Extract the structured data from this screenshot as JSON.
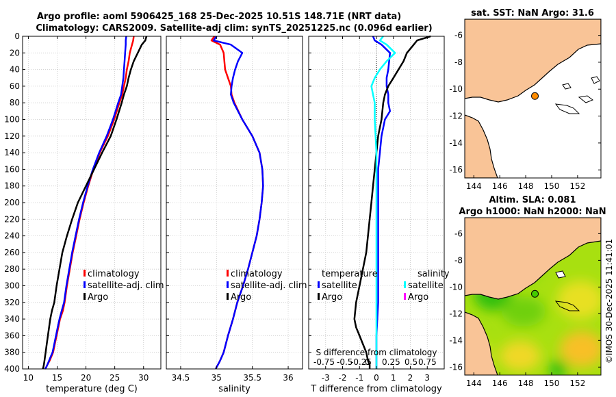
{
  "chart_data": {
    "title_line1": "Argo profile: aoml 5906425_168 25-Dec-2025 10.51S 148.71E (NRT data)",
    "title_line2": "Climatology: CARS2009. Satellite-adj clim: synTS_20251225.nc (0.096d earlier)",
    "watermark": "©IMOS 30-Dec-2025 11:41:01",
    "colors": {
      "climatology": "#ff0000",
      "satellite": "#0000ff",
      "argo": "#000000",
      "sal_sat": "#00ffff",
      "sal_argo": "#ff00ff",
      "land": "#f9c497"
    },
    "depth_ticks": [
      0,
      20,
      40,
      60,
      80,
      100,
      120,
      140,
      160,
      180,
      200,
      220,
      240,
      260,
      280,
      300,
      320,
      340,
      360,
      380,
      400
    ],
    "panels": [
      {
        "id": "temperature",
        "type": "line",
        "xlabel": "temperature (deg C)",
        "xlim": [
          9,
          33
        ],
        "xticks": [
          10,
          15,
          20,
          25,
          30
        ],
        "ylim": [
          0,
          400
        ],
        "legend": [
          "climatology",
          "satellite-adj. clim",
          "Argo"
        ],
        "series": [
          {
            "name": "climatology",
            "color": "#ff0000",
            "width": 2.5,
            "x": [
              28.3,
              28.2,
              28.0,
              27.6,
              27.4,
              27.1,
              26.9,
              26.6,
              26.3,
              25.8,
              24.9,
              23.8,
              22.4,
              21.3,
              20.4,
              19.6,
              18.9,
              18.3,
              17.7,
              17.2,
              16.7,
              16.3,
              16.0,
              15.5,
              15.2,
              14.9,
              14.6,
              14.3,
              14.0,
              13.7,
              13.3,
              13.1,
              12.9
            ],
            "y": [
              0,
              5,
              10,
              20,
              30,
              40,
              50,
              60,
              70,
              80,
              100,
              120,
              140,
              160,
              180,
              200,
              220,
              240,
              260,
              280,
              300,
              320,
              330,
              340,
              350,
              360,
              370,
              380,
              385,
              390,
              395,
              398,
              400
            ]
          },
          {
            "name": "satellite-adj. clim",
            "color": "#0000ff",
            "width": 2.5,
            "x": [
              27.0,
              26.9,
              26.9,
              26.8,
              26.7,
              26.6,
              26.5,
              26.3,
              26.1,
              25.6,
              24.7,
              23.6,
              22.3,
              21.2,
              20.3,
              19.5,
              18.8,
              18.2,
              17.6,
              17.1,
              16.6,
              16.2,
              15.8,
              15.4,
              15.1,
              14.8,
              14.5,
              14.2,
              13.9,
              13.6,
              13.3,
              13.1,
              12.9
            ],
            "y": [
              0,
              5,
              10,
              20,
              30,
              40,
              50,
              60,
              70,
              80,
              100,
              120,
              140,
              160,
              180,
              200,
              220,
              240,
              260,
              280,
              300,
              320,
              330,
              340,
              350,
              360,
              370,
              380,
              385,
              390,
              395,
              398,
              400
            ]
          },
          {
            "name": "Argo",
            "color": "#000000",
            "width": 2.5,
            "x": [
              30.5,
              30.3,
              29.7,
              29.0,
              28.3,
              27.8,
              27.4,
              27.1,
              26.6,
              26.2,
              25.3,
              24.3,
              22.8,
              21.4,
              20.0,
              18.6,
              17.6,
              16.7,
              15.9,
              15.4,
              14.9,
              14.5,
              14.1,
              13.8,
              13.6,
              13.4,
              13.2,
              13.0,
              12.9,
              12.8,
              12.7,
              12.6,
              12.5
            ],
            "y": [
              0,
              5,
              10,
              20,
              30,
              40,
              50,
              60,
              70,
              80,
              100,
              120,
              140,
              160,
              180,
              200,
              220,
              240,
              260,
              280,
              300,
              320,
              330,
              340,
              350,
              360,
              370,
              380,
              385,
              390,
              395,
              398,
              400
            ]
          }
        ]
      },
      {
        "id": "salinity",
        "type": "line",
        "xlabel": "salinity",
        "xlim": [
          34.3,
          36.2
        ],
        "xticks": [
          34.5,
          35,
          35.5,
          36
        ],
        "xtick_labels": [
          "34.5",
          "35",
          "35.5",
          "36"
        ],
        "ylim": [
          0,
          400
        ],
        "legend": [
          "climatology",
          "satellite-adj. clim",
          "Argo"
        ],
        "series": [
          {
            "name": "climatology",
            "color": "#ff0000",
            "width": 2.5,
            "x": [
              34.97,
              34.93,
              35.05,
              35.1,
              35.11,
              35.12,
              35.16,
              35.2,
              35.21,
              35.25,
              35.36,
              35.5,
              35.6,
              35.64,
              35.65,
              35.63,
              35.6,
              35.56,
              35.5,
              35.44,
              35.37,
              35.29,
              35.23,
              35.16,
              35.1,
              35.05,
              35.02,
              35.0,
              34.99
            ],
            "y": [
              0,
              5,
              10,
              20,
              30,
              40,
              50,
              60,
              70,
              80,
              100,
              120,
              140,
              160,
              180,
              200,
              220,
              240,
              260,
              280,
              300,
              320,
              340,
              360,
              380,
              390,
              395,
              398,
              400
            ]
          },
          {
            "name": "satellite-adj. clim",
            "color": "#0000ff",
            "width": 2.5,
            "x": [
              35.0,
              34.96,
              35.2,
              35.36,
              35.3,
              35.26,
              35.23,
              35.21,
              35.2,
              35.24,
              35.36,
              35.5,
              35.6,
              35.64,
              35.65,
              35.63,
              35.6,
              35.56,
              35.5,
              35.44,
              35.37,
              35.29,
              35.23,
              35.16,
              35.1,
              35.05,
              35.02,
              35.0,
              34.99
            ],
            "y": [
              0,
              5,
              10,
              20,
              30,
              40,
              50,
              60,
              70,
              80,
              100,
              120,
              140,
              160,
              180,
              200,
              220,
              240,
              260,
              280,
              300,
              320,
              340,
              360,
              380,
              390,
              395,
              398,
              400
            ]
          }
        ]
      },
      {
        "id": "difference",
        "type": "line",
        "xlabel": "T difference from climatology",
        "xlim": [
          -4,
          4
        ],
        "xticks": [
          -3,
          -2,
          -1,
          0,
          1,
          2,
          3
        ],
        "ylim": [
          0,
          400
        ],
        "legend_temperature_title": "temperature",
        "legend_salinity_title": "salinity",
        "legend_temperature": [
          "satellite",
          "Argo"
        ],
        "legend_salinity": [
          "satellite",
          "Argo"
        ],
        "s_axis_label": "S difference from climatology",
        "s_axis_ticks": [
          "-0.75",
          "-0.5",
          "-0.25",
          "0",
          "0.25",
          "0.5",
          "0.75"
        ],
        "series": [
          {
            "name": "satellite",
            "color": "#0000ff",
            "width": 2.5,
            "x": [
              -0.2,
              -0.1,
              0.3,
              0.8,
              0.7,
              0.6,
              0.6,
              0.7,
              0.7,
              0.8,
              0.5,
              0.3,
              0.2,
              0.1,
              0.1,
              0.1,
              0.1,
              0.1,
              0.0,
              0.0,
              0.0
            ],
            "y": [
              0,
              5,
              10,
              20,
              40,
              50,
              60,
              70,
              80,
              90,
              100,
              120,
              140,
              160,
              200,
              240,
              280,
              320,
              360,
              380,
              400
            ]
          },
          {
            "name": "Argo",
            "color": "#000000",
            "width": 2.5,
            "x": [
              3.2,
              2.4,
              2.2,
              1.8,
              1.6,
              1.3,
              1.0,
              0.7,
              0.5,
              0.4,
              0.3,
              0.1,
              0.0,
              -0.1,
              -0.2,
              -0.3,
              -0.4,
              -0.5,
              -0.6,
              -0.8,
              -1.0,
              -1.2,
              -1.3,
              -1.2,
              -1.0,
              -0.8,
              -0.6,
              -0.5,
              -0.4,
              -0.4
            ],
            "y": [
              0,
              5,
              10,
              20,
              30,
              40,
              50,
              60,
              70,
              80,
              100,
              120,
              140,
              160,
              180,
              200,
              220,
              240,
              260,
              280,
              300,
              320,
              340,
              350,
              360,
              370,
              380,
              390,
              395,
              400
            ]
          },
          {
            "name": "salinity satellite",
            "color": "#00ffff",
            "width": 2.5,
            "x": [
              0.4,
              0.2,
              0.6,
              1.1,
              0.6,
              0.2,
              -0.1,
              -0.3,
              -0.2,
              -0.1,
              -0.1,
              0.0,
              0.0,
              0.0,
              0.0,
              0.0,
              0.0,
              0.0,
              0.0
            ],
            "y": [
              0,
              5,
              10,
              20,
              30,
              40,
              50,
              60,
              70,
              80,
              100,
              140,
              180,
              220,
              260,
              300,
              340,
              380,
              400
            ]
          }
        ]
      }
    ],
    "maps": [
      {
        "id": "sst-map",
        "title": "sat. SST: NaN Argo: 31.6",
        "xticks": [
          "144",
          "146",
          "148",
          "150",
          "152"
        ],
        "yticks": [
          "-6",
          "-8",
          "-10",
          "-12",
          "-14",
          "-16"
        ],
        "lon_range": [
          143.3,
          153.8
        ],
        "lat_range": [
          -16.6,
          -4.8
        ],
        "marker": {
          "lon": 148.71,
          "lat": -10.51,
          "color": "#ff8c00"
        }
      },
      {
        "id": "sla-map",
        "title_line1": "Altim. SLA: 0.081",
        "title_line2": "Argo h1000: NaN h2000: NaN",
        "xticks": [
          "144",
          "146",
          "148",
          "150",
          "152"
        ],
        "yticks": [
          "-6",
          "-8",
          "-10",
          "-12",
          "-14",
          "-16"
        ],
        "lon_range": [
          143.3,
          153.8
        ],
        "lat_range": [
          -16.6,
          -4.8
        ],
        "marker": {
          "lon": 148.71,
          "lat": -10.51,
          "color": "#44cc00"
        }
      }
    ]
  }
}
